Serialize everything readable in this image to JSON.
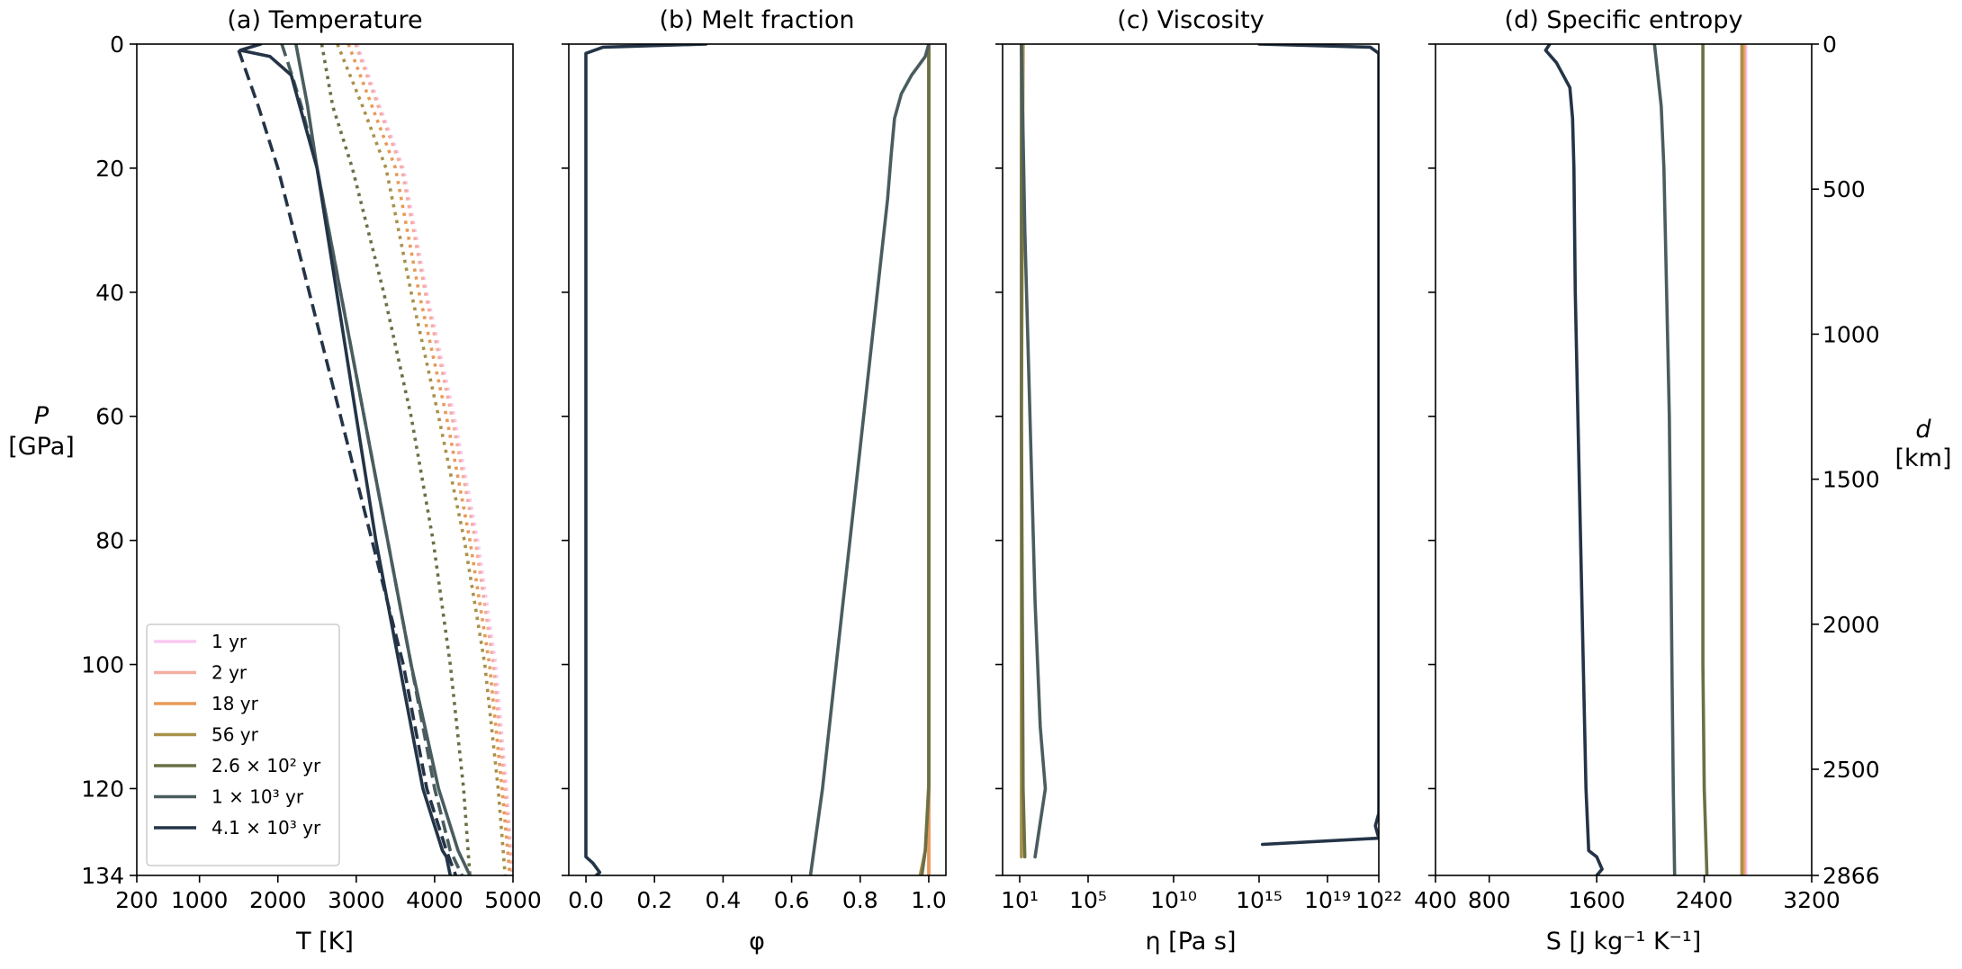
{
  "figure": {
    "y_axis_left": {
      "label": "P",
      "unit": "[GPa]",
      "ticks": [
        "0",
        "20",
        "40",
        "60",
        "80",
        "100",
        "120",
        "134"
      ]
    },
    "y_axis_right": {
      "label": "d",
      "unit": "[km]",
      "ticks": [
        "0",
        "500",
        "1000",
        "1500",
        "2000",
        "2500",
        "2866"
      ]
    },
    "legend": {
      "placement": "lower-left of panel (a)",
      "entries": [
        {
          "label": "1 yr",
          "color": "#f8c8f0"
        },
        {
          "label": "2 yr",
          "color": "#f4ada0"
        },
        {
          "label": "18 yr",
          "color": "#e89a58"
        },
        {
          "label": "56 yr",
          "color": "#a8914a"
        },
        {
          "label": "2.6 × 10² yr",
          "color": "#6b7045"
        },
        {
          "label": "1 × 10³ yr",
          "color": "#4a5d5e"
        },
        {
          "label": "4.1 × 10³ yr",
          "color": "#243447"
        }
      ]
    }
  },
  "chart_data": [
    {
      "type": "line",
      "title": "(a) Temperature",
      "xlabel": "T [K]",
      "ylabel": "P [GPa]",
      "xlim": [
        200,
        5000
      ],
      "ylim": [
        134,
        0
      ],
      "xticks": [
        "200",
        "1000",
        "2000",
        "3000",
        "4000",
        "5000"
      ],
      "xtick_values": [
        200,
        1000,
        2000,
        3000,
        4000,
        5000
      ],
      "y_inverted": true,
      "series": [
        {
          "name": "1 yr",
          "color": "#f8c8f0",
          "dash": "dot",
          "points": [
            [
              3010,
              0
            ],
            [
              3300,
              10
            ],
            [
              3600,
              20
            ],
            [
              3900,
              40
            ],
            [
              4250,
              60
            ],
            [
              4550,
              80
            ],
            [
              4780,
              100
            ],
            [
              4920,
              120
            ],
            [
              5000,
              134
            ]
          ]
        },
        {
          "name": "2 yr",
          "color": "#f4ada0",
          "dash": "dot",
          "points": [
            [
              2990,
              0
            ],
            [
              3280,
              10
            ],
            [
              3580,
              20
            ],
            [
              3880,
              40
            ],
            [
              4220,
              60
            ],
            [
              4520,
              80
            ],
            [
              4750,
              100
            ],
            [
              4900,
              120
            ],
            [
              4990,
              134
            ]
          ]
        },
        {
          "name": "18 yr",
          "color": "#e89a58",
          "dash": "dot",
          "points": [
            [
              2900,
              0
            ],
            [
              3200,
              10
            ],
            [
              3500,
              20
            ],
            [
              3800,
              40
            ],
            [
              4150,
              60
            ],
            [
              4450,
              80
            ],
            [
              4700,
              100
            ],
            [
              4860,
              120
            ],
            [
              4960,
              134
            ]
          ]
        },
        {
          "name": "56 yr",
          "color": "#a8914a",
          "dash": "dot",
          "points": [
            [
              2760,
              0
            ],
            [
              3080,
              10
            ],
            [
              3380,
              20
            ],
            [
              3700,
              40
            ],
            [
              4050,
              60
            ],
            [
              4380,
              80
            ],
            [
              4640,
              100
            ],
            [
              4810,
              120
            ],
            [
              4900,
              134
            ]
          ]
        },
        {
          "name": "2.6 × 10² yr",
          "color": "#6b7045",
          "dash": "dot",
          "points": [
            [
              2560,
              0
            ],
            [
              2700,
              10
            ],
            [
              2950,
              20
            ],
            [
              3350,
              40
            ],
            [
              3700,
              60
            ],
            [
              3980,
              80
            ],
            [
              4200,
              100
            ],
            [
              4370,
              120
            ],
            [
              4450,
              134
            ]
          ]
        },
        {
          "name": "1 × 10³ yr",
          "color": "#4a5d5e",
          "dash": "dash",
          "points": [
            [
              2050,
              0
            ],
            [
              2180,
              5
            ],
            [
              2300,
              10
            ],
            [
              2500,
              20
            ],
            [
              2800,
              40
            ],
            [
              3100,
              60
            ],
            [
              3400,
              80
            ],
            [
              3700,
              100
            ],
            [
              4000,
              120
            ],
            [
              4200,
              130
            ],
            [
              4350,
              134
            ]
          ]
        },
        {
          "name": "1 × 10³ yr",
          "color": "#4a5d5e",
          "dash": "solid",
          "points": [
            [
              2230,
              0
            ],
            [
              2380,
              10
            ],
            [
              2500,
              20
            ],
            [
              2800,
              40
            ],
            [
              3100,
              60
            ],
            [
              3400,
              80
            ],
            [
              3700,
              100
            ],
            [
              4050,
              120
            ],
            [
              4300,
              130
            ],
            [
              4450,
              134
            ]
          ]
        },
        {
          "name": "4.1 × 10³ yr",
          "color": "#243447",
          "dash": "dash",
          "points": [
            [
              1500,
              1
            ],
            [
              1750,
              10
            ],
            [
              2000,
              20
            ],
            [
              2400,
              40
            ],
            [
              2800,
              60
            ],
            [
              3200,
              80
            ],
            [
              3600,
              100
            ],
            [
              3900,
              120
            ],
            [
              4150,
              130
            ],
            [
              4270,
              134
            ]
          ]
        },
        {
          "name": "4.1 × 10³ yr",
          "color": "#243447",
          "dash": "solid",
          "points": [
            [
              1780,
              0
            ],
            [
              1520,
              1
            ],
            [
              1900,
              2
            ],
            [
              2170,
              5
            ],
            [
              2280,
              10
            ],
            [
              2500,
              20
            ],
            [
              2750,
              40
            ],
            [
              3000,
              60
            ],
            [
              3250,
              80
            ],
            [
              3550,
              100
            ],
            [
              3850,
              120
            ],
            [
              4100,
              130
            ],
            [
              4150,
              131
            ],
            [
              4200,
              134
            ]
          ]
        }
      ]
    },
    {
      "type": "line",
      "title": "(b) Melt fraction",
      "xlabel": "φ",
      "xlim": [
        -0.05,
        1.05
      ],
      "ylim": [
        134,
        0
      ],
      "xticks": [
        "0.0",
        "0.2",
        "0.4",
        "0.6",
        "0.8",
        "1.0"
      ],
      "xtick_values": [
        0.0,
        0.2,
        0.4,
        0.6,
        0.8,
        1.0
      ],
      "y_inverted": true,
      "series": [
        {
          "name": "1 yr",
          "color": "#f8c8f0",
          "points": [
            [
              1.0,
              0
            ],
            [
              1.0,
              134
            ]
          ]
        },
        {
          "name": "2 yr",
          "color": "#f4ada0",
          "points": [
            [
              1.0,
              0
            ],
            [
              1.0,
              134
            ]
          ]
        },
        {
          "name": "18 yr",
          "color": "#e89a58",
          "points": [
            [
              1.0,
              0
            ],
            [
              1.0,
              134
            ]
          ]
        },
        {
          "name": "56 yr",
          "color": "#a8914a",
          "points": [
            [
              1.0,
              0
            ],
            [
              1.0,
              119
            ],
            [
              0.99,
              130
            ],
            [
              0.975,
              134
            ]
          ]
        },
        {
          "name": "2.6 × 10² yr",
          "color": "#6b7045",
          "points": [
            [
              1.0,
              0
            ],
            [
              1.0,
              120
            ],
            [
              0.99,
              130
            ],
            [
              0.98,
              134
            ]
          ]
        },
        {
          "name": "1 × 10³ yr",
          "color": "#4a5d5e",
          "points": [
            [
              1.0,
              0
            ],
            [
              0.99,
              2
            ],
            [
              0.95,
              5
            ],
            [
              0.92,
              8
            ],
            [
              0.9,
              12
            ],
            [
              0.89,
              18
            ],
            [
              0.88,
              25
            ],
            [
              0.86,
              35
            ],
            [
              0.84,
              45
            ],
            [
              0.81,
              60
            ],
            [
              0.78,
              75
            ],
            [
              0.75,
              90
            ],
            [
              0.72,
              105
            ],
            [
              0.69,
              120
            ],
            [
              0.655,
              134
            ]
          ]
        },
        {
          "name": "4.1 × 10³ yr",
          "color": "#243447",
          "points": [
            [
              0.35,
              0
            ],
            [
              0.05,
              0.5
            ],
            [
              0.0,
              1.5
            ],
            [
              0.0,
              131
            ],
            [
              0.02,
              132
            ],
            [
              0.04,
              133.5
            ],
            [
              0.03,
              134
            ]
          ]
        }
      ]
    },
    {
      "type": "line",
      "title": "(c) Viscosity",
      "xlabel": "η [Pa s]",
      "x_scale": "log10",
      "xlim": [
        0,
        22
      ],
      "ylim": [
        134,
        0
      ],
      "xticks": [
        "10¹",
        "10⁵",
        "10¹⁰",
        "10¹⁵",
        "10¹⁹",
        "10²²"
      ],
      "xtick_values": [
        1,
        5,
        10,
        15,
        19,
        22
      ],
      "y_inverted": true,
      "series": [
        {
          "name": "56 yr",
          "color": "#a8914a",
          "points": [
            [
              1.2,
              0
            ],
            [
              1.1,
              60
            ],
            [
              1.1,
              120
            ],
            [
              1.1,
              131
            ]
          ]
        },
        {
          "name": "2.6 × 10² yr",
          "color": "#6b7045",
          "points": [
            [
              1.1,
              0
            ],
            [
              1.1,
              60
            ],
            [
              1.2,
              120
            ],
            [
              1.3,
              131
            ]
          ]
        },
        {
          "name": "1 × 10³ yr",
          "color": "#4a5d5e",
          "points": [
            [
              1.1,
              0
            ],
            [
              1.3,
              30
            ],
            [
              1.6,
              60
            ],
            [
              1.9,
              90
            ],
            [
              2.2,
              110
            ],
            [
              2.5,
              120
            ],
            [
              1.9,
              131
            ]
          ]
        },
        {
          "name": "4.1 × 10³ yr",
          "color": "#243447",
          "points": [
            [
              15,
              0
            ],
            [
              21.5,
              0.5
            ],
            [
              22,
              1.5
            ],
            [
              22,
              124
            ],
            [
              21.8,
              126
            ],
            [
              22,
              128
            ],
            [
              15.2,
              129
            ]
          ]
        }
      ]
    },
    {
      "type": "line",
      "title": "(d) Specific entropy",
      "xlabel": "S [J kg⁻¹ K⁻¹]",
      "xlim": [
        400,
        3200
      ],
      "ylim": [
        134,
        0
      ],
      "xticks": [
        "400",
        "800",
        "1600",
        "2400",
        "3200"
      ],
      "xtick_values": [
        400,
        800,
        1600,
        2400,
        3200
      ],
      "y_inverted": true,
      "series": [
        {
          "name": "1 yr",
          "color": "#f8c8f0",
          "points": [
            [
              2710,
              0
            ],
            [
              2710,
              134
            ]
          ]
        },
        {
          "name": "2 yr",
          "color": "#f4ada0",
          "points": [
            [
              2700,
              0
            ],
            [
              2700,
              134
            ]
          ]
        },
        {
          "name": "18 yr",
          "color": "#e89a58",
          "points": [
            [
              2690,
              0
            ],
            [
              2690,
              134
            ]
          ]
        },
        {
          "name": "56 yr",
          "color": "#a8914a",
          "points": [
            [
              2680,
              0
            ],
            [
              2680,
              134
            ]
          ]
        },
        {
          "name": "2.6 × 10² yr",
          "color": "#6b7045",
          "points": [
            [
              2390,
              0
            ],
            [
              2390,
              100
            ],
            [
              2400,
              120
            ],
            [
              2420,
              134
            ]
          ]
        },
        {
          "name": "1 × 10³ yr",
          "color": "#4a5d5e",
          "points": [
            [
              2030,
              0
            ],
            [
              2040,
              2
            ],
            [
              2080,
              10
            ],
            [
              2100,
              20
            ],
            [
              2120,
              40
            ],
            [
              2140,
              60
            ],
            [
              2150,
              80
            ],
            [
              2160,
              100
            ],
            [
              2170,
              120
            ],
            [
              2180,
              134
            ]
          ]
        },
        {
          "name": "4.1 × 10³ yr",
          "color": "#243447",
          "points": [
            [
              1250,
              0
            ],
            [
              1220,
              1
            ],
            [
              1300,
              3
            ],
            [
              1400,
              7
            ],
            [
              1420,
              12
            ],
            [
              1430,
              20
            ],
            [
              1440,
              40
            ],
            [
              1460,
              60
            ],
            [
              1480,
              80
            ],
            [
              1500,
              100
            ],
            [
              1520,
              120
            ],
            [
              1540,
              130
            ],
            [
              1600,
              131
            ],
            [
              1640,
              133
            ],
            [
              1600,
              134
            ]
          ]
        }
      ]
    }
  ]
}
